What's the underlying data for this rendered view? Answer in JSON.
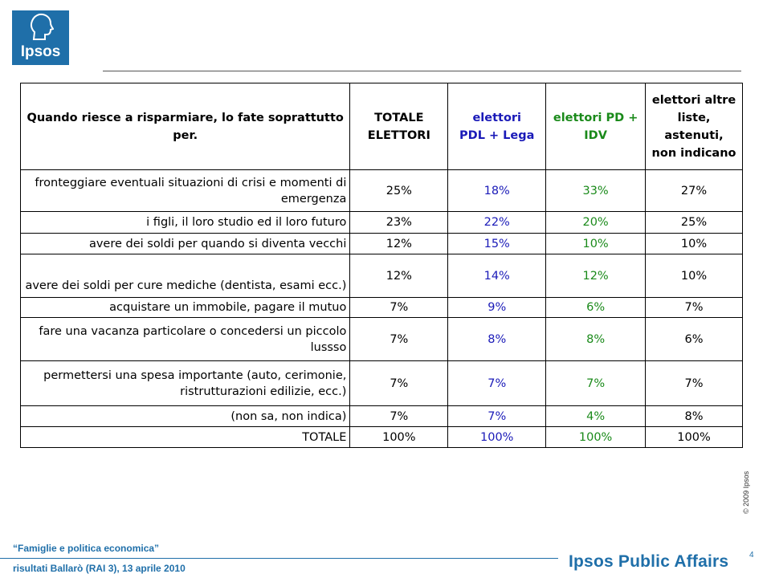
{
  "logo": {
    "text": "Ipsos"
  },
  "table": {
    "headers": [
      [
        "Quando riesce a risparmiare, lo  fate soprattutto",
        "per."
      ],
      [
        "TOTALE",
        "ELETTORI"
      ],
      [
        "elettori",
        "PDL + Lega"
      ],
      [
        "elettori PD +",
        "IDV"
      ],
      [
        "elettori altre",
        "liste, astenuti,",
        "non indicano"
      ]
    ],
    "rows": [
      {
        "label": [
          "fronteggiare eventuali situazioni di crisi e momenti di",
          "emergenza"
        ],
        "values": [
          "25%",
          "18%",
          "33%",
          "27%"
        ]
      },
      {
        "label": [
          "i figli, il loro studio ed il loro futuro"
        ],
        "values": [
          "23%",
          "22%",
          "20%",
          "25%"
        ]
      },
      {
        "label": [
          "avere dei soldi per quando si diventa vecchi"
        ],
        "values": [
          "12%",
          "15%",
          "10%",
          "10%"
        ]
      },
      {
        "label": [
          "avere dei soldi per cure mediche (dentista, esami ecc.)"
        ],
        "values": [
          "12%",
          "14%",
          "12%",
          "10%"
        ]
      },
      {
        "label": [
          "acquistare un immobile, pagare il mutuo"
        ],
        "values": [
          "7%",
          "9%",
          "6%",
          "7%"
        ]
      },
      {
        "label": [
          "fare una vacanza particolare o concedersi un piccolo",
          "lussso"
        ],
        "values": [
          "7%",
          "8%",
          "8%",
          "6%"
        ]
      },
      {
        "label": [
          "permettersi una spesa importante (auto, cerimonie,",
          "ristrutturazioni edilizie, ecc.)"
        ],
        "values": [
          "7%",
          "7%",
          "7%",
          "7%"
        ]
      },
      {
        "label": [
          "(non sa, non indica)"
        ],
        "values": [
          "7%",
          "7%",
          "4%",
          "8%"
        ]
      },
      {
        "label": [
          "TOTALE"
        ],
        "values": [
          "100%",
          "100%",
          "100%",
          "100%"
        ]
      }
    ]
  },
  "copyright": "© 2009 Ipsos",
  "page_number": "4",
  "footer": {
    "title": "“Famiglie e politica economica”",
    "subtitle": "risultati Ballarò (RAI 3), 13 aprile 2010",
    "brand": "Ipsos Public Affairs"
  },
  "colors": {
    "brand": "#1f6fa9",
    "pdl": "#1a1ab8",
    "pd": "#1a8a1a"
  }
}
